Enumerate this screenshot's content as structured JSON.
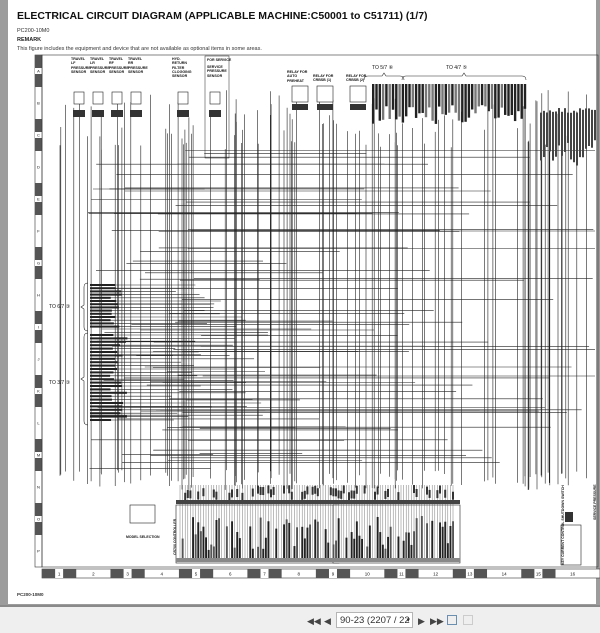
{
  "document": {
    "title": "ELECTRICAL CIRCUIT DIAGRAM (APPLICABLE MACHINE:C50001 to C51711) (1/7)",
    "model": "PC200-10M0",
    "remark_heading": "REMARK",
    "remark_text": "This figure includes the equipment and device that are not available as optional items in some areas.",
    "footer_model": "PC200-10M0"
  },
  "diagram": {
    "row_labels": [
      "A",
      "B",
      "C",
      "D",
      "E",
      "F",
      "G",
      "H",
      "I",
      "J",
      "K",
      "L",
      "M",
      "N",
      "O",
      "P"
    ],
    "column_labels": [
      "1",
      "2",
      "3",
      "4",
      "5",
      "6",
      "7",
      "8",
      "9",
      "10",
      "11",
      "12",
      "13",
      "14",
      "15",
      "16"
    ],
    "sensors": [
      "TRAVEL LF PRESSURE SENSOR",
      "TRAVEL LR PRESSURE SENSOR",
      "TRAVEL RF PRESSURE SENSOR",
      "TRAVEL RR PRESSURE SENSOR",
      "HYD. RETURN FILTER CLOGGING SENSOR",
      "SERVICE PRESSURE SENSOR"
    ],
    "for_service": "FOR SERVICE",
    "relays": [
      "RELAY FOR AUTO PREHEAT",
      "RELAY FOR CRBSB (1)",
      "RELAY FOR CRBSB (2)"
    ],
    "refs": {
      "to_5_7": "TO 5/7 ⑥",
      "to_4_7": "TO 4/7 ⑤",
      "to_6_7": "TO 6/7 ③",
      "to_3_7": "TO 3/7 ③"
    },
    "controllers": {
      "left": "CR700 CONTROLLER",
      "model_selection": "MODEL SELECTION",
      "right": "KEY CURRENT CONTROL SHUTDOWN SWITCH",
      "service": "SERVICE PRESSURE"
    }
  },
  "toolbar": {
    "page_value": "90-23 (2207 / 22",
    "first_icon": "first-page-icon",
    "prev_icon": "previous-page-icon",
    "next_icon": "next-page-icon",
    "last_icon": "last-page-icon"
  }
}
